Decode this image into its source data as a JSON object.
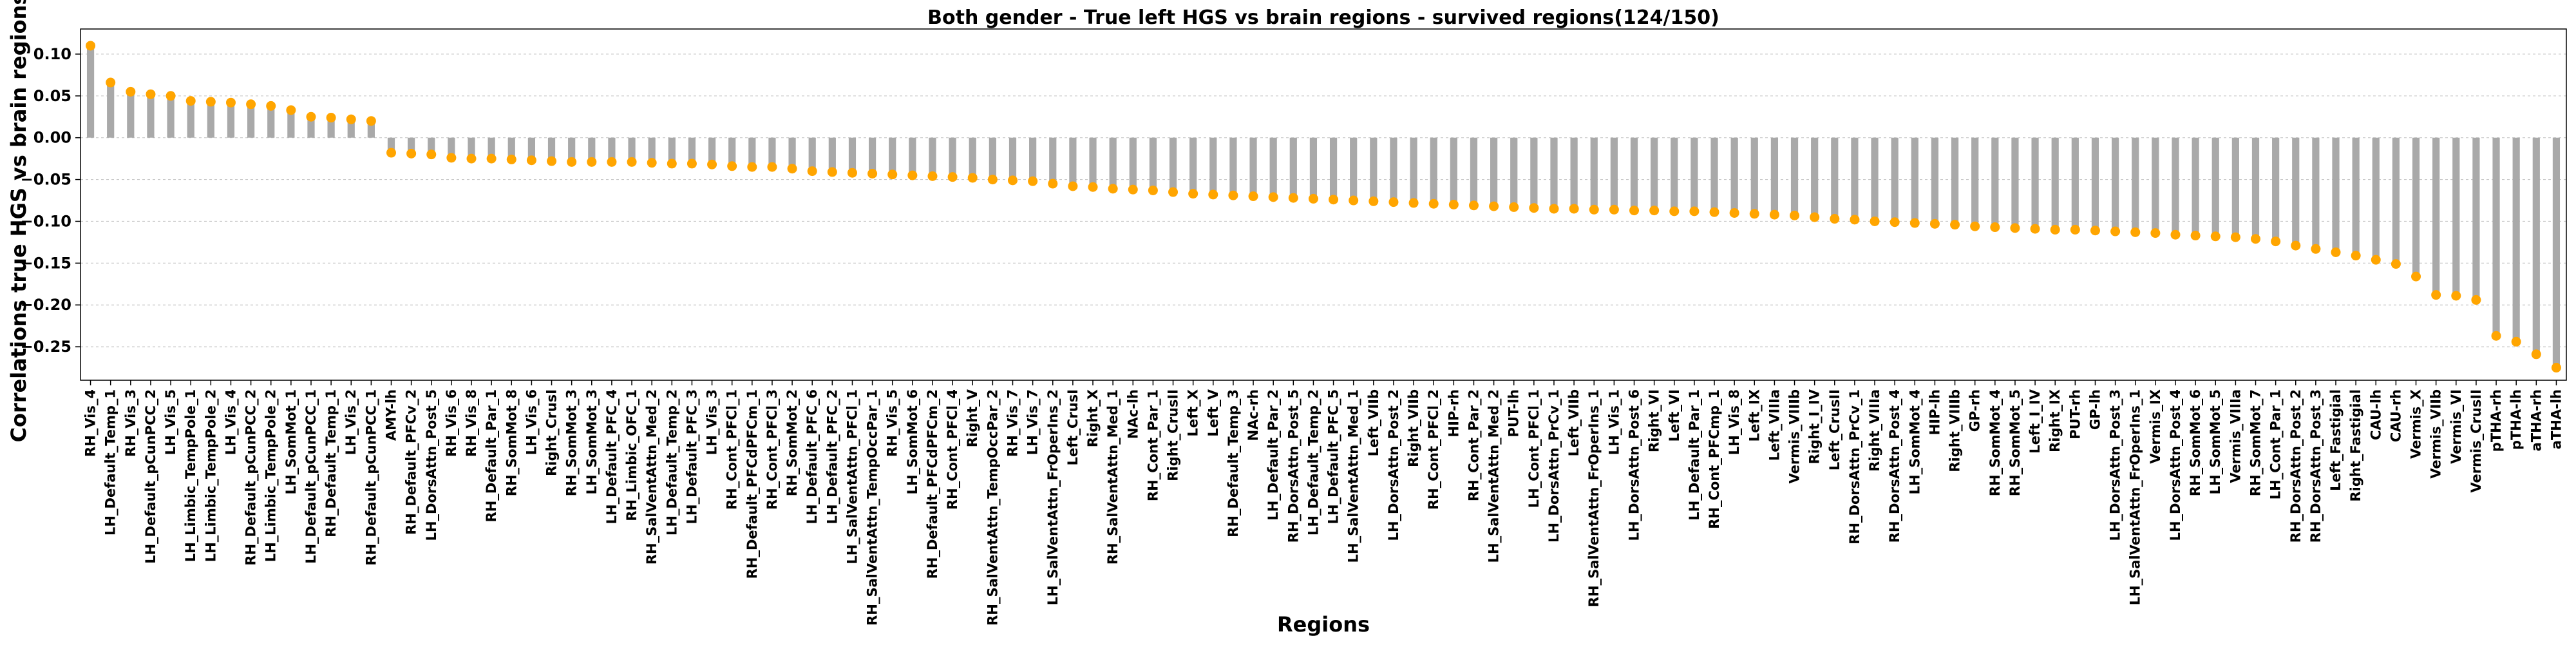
{
  "chart_data": {
    "type": "bar",
    "title": "Both gender - True left HGS vs brain regions - survived regions(124/150)",
    "xlabel": "Regions",
    "ylabel": "Correlations true HGS vs brain regions",
    "ylim": [
      -0.29,
      0.13
    ],
    "yticks": [
      "0.10",
      "0.05",
      "0.00",
      "−0.05",
      "−0.10",
      "−0.15",
      "−0.20",
      "−0.25"
    ],
    "ytick_values": [
      0.1,
      0.05,
      0.0,
      -0.05,
      -0.1,
      -0.15,
      -0.2,
      -0.25
    ],
    "grid": "horizontal dashed",
    "bar_color": "#a9a9a9",
    "marker_color": "#ffa500",
    "categories": [
      "RH_Vis_4",
      "LH_Default_Temp_1",
      "RH_Vis_3",
      "LH_Default_pCunPCC_2",
      "LH_Vis_5",
      "LH_Limbic_TempPole_1",
      "LH_Limbic_TempPole_2",
      "LH_Vis_4",
      "RH_Default_pCunPCC_2",
      "LH_Limbic_TempPole_2",
      "LH_SomMot_1",
      "LH_Default_pCunPCC_1",
      "RH_Default_Temp_1",
      "LH_Vis_2",
      "RH_Default_pCunPCC_1",
      "AMY-lh",
      "RH_Default_PFCv_2",
      "LH_DorsAttn_Post_5",
      "RH_Vis_6",
      "RH_Vis_8",
      "RH_Default_Par_1",
      "RH_SomMot_8",
      "LH_Vis_6",
      "Right_CrusI",
      "RH_SomMot_3",
      "LH_SomMot_3",
      "LH_Default_PFC_4",
      "RH_Limbic_OFC_1",
      "RH_SalVentAttn_Med_2",
      "LH_Default_Temp_2",
      "LH_Default_PFC_3",
      "LH_Vis_3",
      "RH_Cont_PFCl_1",
      "RH_Default_PFCdPFCm_1",
      "RH_Cont_PFCl_3",
      "RH_SomMot_2",
      "LH_Default_PFC_6",
      "LH_Default_PFC_2",
      "LH_SalVentAttn_PFCl_1",
      "RH_SalVentAttn_TempOccPar_1",
      "RH_Vis_5",
      "LH_SomMot_6",
      "RH_Default_PFCdPFCm_2",
      "RH_Cont_PFCl_4",
      "Right_V",
      "RH_SalVentAttn_TempOccPar_2",
      "RH_Vis_7",
      "LH_Vis_7",
      "LH_SalVentAttn_FrOperIns_2",
      "Left_CrusI",
      "Right_X",
      "RH_SalVentAttn_Med_1",
      "NAc-lh",
      "RH_Cont_Par_1",
      "Right_CrusII",
      "Left_X",
      "Left_V",
      "RH_Default_Temp_3",
      "NAc-rh",
      "LH_Default_Par_2",
      "RH_DorsAttn_Post_5",
      "LH_Default_Temp_2",
      "LH_Default_PFC_5",
      "LH_SalVentAttn_Med_1",
      "Left_VIIb",
      "LH_DorsAttn_Post_2",
      "Right_VIIb",
      "RH_Cont_PFCl_2",
      "HIP-rh",
      "RH_Cont_Par_2",
      "LH_SalVentAttn_Med_2",
      "PUT-lh",
      "LH_Cont_PFCl_1",
      "LH_DorsAttn_PrCv_1",
      "Left_VIIb",
      "RH_SalVentAttn_FrOperIns_1",
      "LH_Vis_1",
      "LH_DorsAttn_Post_6",
      "Right_VI",
      "Left_VI",
      "LH_Default_Par_1",
      "RH_Cont_PFCmp_1",
      "LH_Vis_8",
      "Left_IX",
      "Left_VIIIa",
      "Vermis_VIIIb",
      "Right_I_IV",
      "Left_CrusII",
      "RH_DorsAttn_PrCv_1",
      "Right_VIIIa",
      "RH_DorsAttn_Post_4",
      "LH_SomMot_4",
      "HIP-lh",
      "Right_VIIIb",
      "GP-rh",
      "RH_SomMot_4",
      "RH_SomMot_5",
      "Left_I_IV",
      "Right_IX",
      "PUT-rh",
      "GP-lh",
      "LH_DorsAttn_Post_3",
      "LH_SalVentAttn_FrOperIns_1",
      "Vermis_IX",
      "LH_DorsAttn_Post_4",
      "RH_SomMot_6",
      "LH_SomMot_5",
      "Vermis_VIIIa",
      "RH_SomMot_7",
      "LH_Cont_Par_1",
      "RH_DorsAttn_Post_2",
      "RH_DorsAttn_Post_3",
      "Left_Fastigial",
      "Right_Fastigial",
      "CAU-lh",
      "CAU-rh",
      "Vermis_X",
      "Vermis_VIIb",
      "Vermis_VI",
      "Vermis_CrusII",
      "pTHA-rh",
      "pTHA-lh",
      "aTHA-rh",
      "aTHA-lh"
    ],
    "values": [
      0.11,
      0.066,
      0.055,
      0.052,
      0.05,
      0.044,
      0.043,
      0.042,
      0.04,
      0.038,
      0.033,
      0.025,
      0.024,
      0.022,
      0.02,
      -0.018,
      -0.019,
      -0.02,
      -0.024,
      -0.025,
      -0.025,
      -0.026,
      -0.027,
      -0.028,
      -0.029,
      -0.029,
      -0.029,
      -0.029,
      -0.03,
      -0.031,
      -0.031,
      -0.032,
      -0.034,
      -0.035,
      -0.035,
      -0.037,
      -0.04,
      -0.041,
      -0.042,
      -0.043,
      -0.044,
      -0.045,
      -0.046,
      -0.047,
      -0.048,
      -0.05,
      -0.051,
      -0.052,
      -0.055,
      -0.058,
      -0.059,
      -0.061,
      -0.062,
      -0.063,
      -0.065,
      -0.067,
      -0.068,
      -0.069,
      -0.07,
      -0.071,
      -0.072,
      -0.073,
      -0.074,
      -0.075,
      -0.076,
      -0.077,
      -0.078,
      -0.079,
      -0.08,
      -0.081,
      -0.082,
      -0.083,
      -0.084,
      -0.085,
      -0.085,
      -0.086,
      -0.086,
      -0.087,
      -0.087,
      -0.088,
      -0.088,
      -0.089,
      -0.09,
      -0.091,
      -0.092,
      -0.093,
      -0.095,
      -0.097,
      -0.098,
      -0.1,
      -0.101,
      -0.102,
      -0.103,
      -0.104,
      -0.106,
      -0.107,
      -0.108,
      -0.109,
      -0.11,
      -0.11,
      -0.111,
      -0.112,
      -0.113,
      -0.114,
      -0.116,
      -0.117,
      -0.118,
      -0.119,
      -0.121,
      -0.124,
      -0.129,
      -0.133,
      -0.137,
      -0.141,
      -0.146,
      -0.151,
      -0.166,
      -0.188,
      -0.189,
      -0.194,
      -0.237,
      -0.244,
      -0.259,
      -0.275
    ]
  }
}
